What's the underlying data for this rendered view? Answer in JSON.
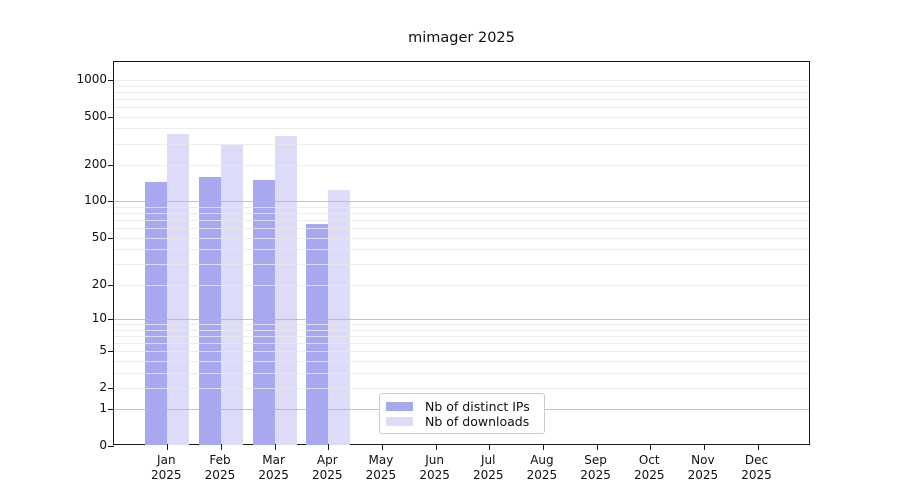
{
  "title": "mimager 2025",
  "chart_data": {
    "type": "bar",
    "title": "mimager 2025",
    "categories": [
      "Jan 2025",
      "Feb 2025",
      "Mar 2025",
      "Apr 2025",
      "May 2025",
      "Jun 2025",
      "Jul 2025",
      "Aug 2025",
      "Sep 2025",
      "Oct 2025",
      "Nov 2025",
      "Dec 2025"
    ],
    "series": [
      {
        "name": "Nb of distinct IPs",
        "color": "#a8a8f0",
        "values": [
          145,
          160,
          150,
          65,
          0,
          0,
          0,
          0,
          0,
          0,
          0,
          0
        ]
      },
      {
        "name": "Nb of downloads",
        "color": "#dcdcf8",
        "values": [
          360,
          290,
          345,
          125,
          0,
          0,
          0,
          0,
          0,
          0,
          0,
          0
        ]
      }
    ],
    "xlabel": "",
    "ylabel": "",
    "y_scale": "log10(1+x)",
    "y_ticks": [
      0,
      1,
      2,
      5,
      10,
      20,
      50,
      100,
      200,
      500,
      1000
    ],
    "major_grid_values": [
      1,
      10,
      100
    ],
    "minor_grid_values": [
      2,
      3,
      4,
      5,
      6,
      7,
      8,
      9,
      20,
      30,
      40,
      50,
      60,
      70,
      80,
      90,
      200,
      300,
      400,
      500,
      600,
      700,
      800,
      900,
      1000
    ],
    "grid": true,
    "legend_position": "lower-center",
    "colors": {
      "major_grid": "#b4b4b4",
      "minor_grid": "#e9e9e9",
      "spine": "#1a1a1a",
      "text": "#111111",
      "background": "#ffffff"
    }
  }
}
